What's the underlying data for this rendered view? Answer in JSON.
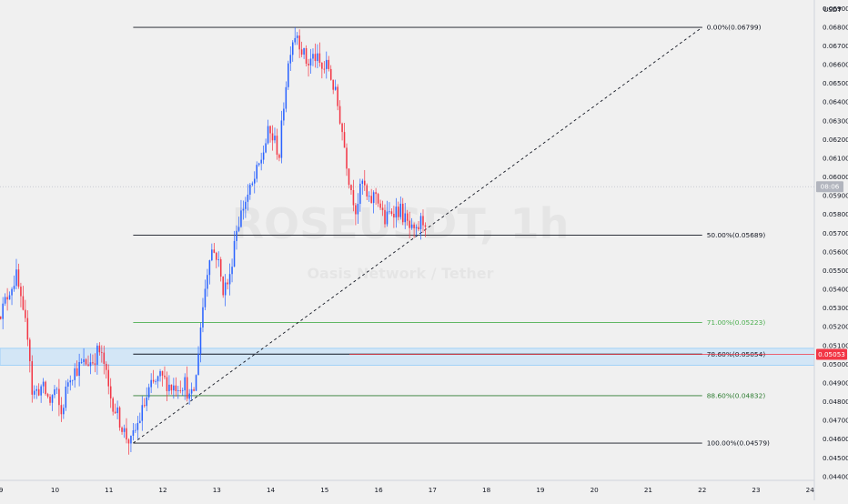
{
  "chart_data": {
    "type": "candlestick",
    "currency_label": "USDT",
    "watermark_symbol": "ROSEUSDT, 1h",
    "watermark_subtitle": "Oasis Network / Tether",
    "x_ticks": [
      "9",
      "10",
      "11",
      "12",
      "13",
      "14",
      "15",
      "16",
      "17",
      "18",
      "19",
      "20",
      "21",
      "22",
      "23",
      "24"
    ],
    "y_ticks": [
      "0.06900",
      "0.06800",
      "0.06700",
      "0.06600",
      "0.06500",
      "0.06400",
      "0.06300",
      "0.06200",
      "0.06100",
      "0.06000",
      "0.05900",
      "0.05800",
      "0.05700",
      "0.05600",
      "0.05500",
      "0.05400",
      "0.05300",
      "0.05200",
      "0.05100",
      "0.05000",
      "0.04900",
      "0.04800",
      "0.04700",
      "0.04600",
      "0.04500",
      "0.04400"
    ],
    "ylim": [
      0.0438,
      0.06945
    ],
    "xlim_days": [
      8.98,
      24.08
    ],
    "current_price": {
      "value": "0.05053",
      "price": 0.05053,
      "color": "#f23645"
    },
    "countdown_tag": "08:06",
    "countdown_price": 0.05948,
    "fib_levels": [
      {
        "label": "0.00%(0.06799)",
        "price": 0.06799,
        "color": "#131722"
      },
      {
        "label": "50.00%(0.05689)",
        "price": 0.05689,
        "color": "#131722"
      },
      {
        "label": "71.00%(0.05223)",
        "price": 0.05223,
        "color": "#4caf50"
      },
      {
        "label": "78.60%(0.05054)",
        "price": 0.05054,
        "color": "#131722"
      },
      {
        "label": "88.60%(0.04832)",
        "price": 0.04832,
        "color": "#2e7d32"
      },
      {
        "label": "100.00%(0.04579)",
        "price": 0.04579,
        "color": "#131722"
      }
    ],
    "fib_start_day": 11.45,
    "fib_end_day": 22.0,
    "trend_line": {
      "from": [
        11.45,
        0.04579
      ],
      "to": [
        22.0,
        0.06799
      ]
    },
    "zone": {
      "from": 0.04995,
      "to": 0.05085,
      "color": "#bbdefb"
    },
    "colors": {
      "up": "#2962ff",
      "down": "#f23645"
    },
    "keyframes": [
      [
        8.95,
        0.053
      ],
      [
        9.05,
        0.0528
      ],
      [
        9.2,
        0.054
      ],
      [
        9.33,
        0.0547
      ],
      [
        9.45,
        0.0525
      ],
      [
        9.55,
        0.0515
      ],
      [
        9.62,
        0.0484
      ],
      [
        9.8,
        0.0488
      ],
      [
        9.95,
        0.048
      ],
      [
        10.05,
        0.0487
      ],
      [
        10.15,
        0.0472
      ],
      [
        10.3,
        0.0494
      ],
      [
        10.55,
        0.05
      ],
      [
        10.75,
        0.0502
      ],
      [
        10.85,
        0.0508
      ],
      [
        10.95,
        0.05
      ],
      [
        11.05,
        0.0484
      ],
      [
        11.2,
        0.0473
      ],
      [
        11.35,
        0.0462
      ],
      [
        11.45,
        0.0458
      ],
      [
        11.6,
        0.047
      ],
      [
        11.8,
        0.0487
      ],
      [
        12.0,
        0.0493
      ],
      [
        12.2,
        0.0488
      ],
      [
        12.45,
        0.049
      ],
      [
        12.55,
        0.048
      ],
      [
        12.65,
        0.049
      ],
      [
        12.72,
        0.0515
      ],
      [
        12.82,
        0.054
      ],
      [
        12.92,
        0.0562
      ],
      [
        13.05,
        0.0558
      ],
      [
        13.15,
        0.054
      ],
      [
        13.28,
        0.0545
      ],
      [
        13.38,
        0.057
      ],
      [
        13.55,
        0.0586
      ],
      [
        13.7,
        0.0595
      ],
      [
        13.85,
        0.0608
      ],
      [
        14.0,
        0.0624
      ],
      [
        14.1,
        0.062
      ],
      [
        14.2,
        0.0612
      ],
      [
        14.3,
        0.0645
      ],
      [
        14.42,
        0.0672
      ],
      [
        14.52,
        0.0678
      ],
      [
        14.62,
        0.0668
      ],
      [
        14.72,
        0.066
      ],
      [
        14.85,
        0.0665
      ],
      [
        15.0,
        0.0657
      ],
      [
        15.1,
        0.066
      ],
      [
        15.25,
        0.0643
      ],
      [
        15.35,
        0.0628
      ],
      [
        15.5,
        0.0598
      ],
      [
        15.62,
        0.0583
      ],
      [
        15.75,
        0.0598
      ],
      [
        15.85,
        0.0585
      ],
      [
        16.0,
        0.0592
      ],
      [
        16.15,
        0.0576
      ],
      [
        16.3,
        0.0583
      ],
      [
        16.45,
        0.0582
      ],
      [
        16.6,
        0.0573
      ],
      [
        16.72,
        0.0568
      ],
      [
        16.82,
        0.0576
      ],
      [
        16.9,
        0.0577
      ]
    ]
  }
}
